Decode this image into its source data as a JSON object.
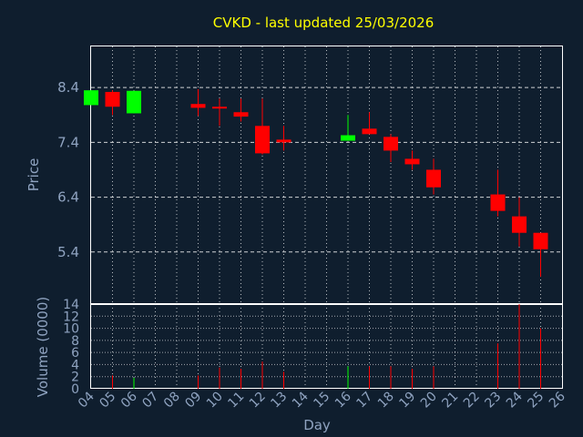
{
  "colors": {
    "background": "#0f1e2e",
    "frame": "#ffffff",
    "grid": "#ffffff",
    "text": "#8fa3c0",
    "title": "#ffff00",
    "up": "#00ff00",
    "down": "#ff0000"
  },
  "chart_data": {
    "type": "candlestick",
    "title": "CVKD - last updated 25/03/2026",
    "xlabel": "Day",
    "price_panel": {
      "ylabel": "Price",
      "yticks": [
        "8.4",
        "7.4",
        "6.4",
        "5.4"
      ],
      "ylim": [
        4.45,
        9.15
      ],
      "grid": true
    },
    "volume_panel": {
      "ylabel": "Volume (0000)",
      "yticks": [
        "0",
        "2",
        "4",
        "6",
        "8",
        "10",
        "12",
        "14"
      ],
      "ylim": [
        0,
        14
      ],
      "grid": true
    },
    "x_tick_labels": [
      "04",
      "05",
      "06",
      "07",
      "08",
      "09",
      "10",
      "11",
      "12",
      "13",
      "14",
      "15",
      "16",
      "17",
      "18",
      "19",
      "20",
      "21",
      "22",
      "23",
      "24",
      "25",
      "26"
    ],
    "candles": [
      {
        "day": "04",
        "open": 8.08,
        "high": 8.35,
        "low": 8.08,
        "close": 8.35,
        "volume": 0
      },
      {
        "day": "05",
        "open": 8.32,
        "high": 8.35,
        "low": 7.9,
        "close": 8.05,
        "volume": 2.2
      },
      {
        "day": "06",
        "open": 7.93,
        "high": 8.34,
        "low": 7.93,
        "close": 8.34,
        "volume": 1.8
      },
      {
        "day": "09",
        "open": 8.1,
        "high": 8.37,
        "low": 7.88,
        "close": 8.03,
        "volume": 2.2
      },
      {
        "day": "10",
        "open": 8.05,
        "high": 8.2,
        "low": 7.7,
        "close": 8.02,
        "volume": 3.5
      },
      {
        "day": "11",
        "open": 7.95,
        "high": 8.2,
        "low": 7.78,
        "close": 7.87,
        "volume": 3.3
      },
      {
        "day": "12",
        "open": 7.7,
        "high": 8.2,
        "low": 7.18,
        "close": 7.2,
        "volume": 4.5
      },
      {
        "day": "13",
        "open": 7.45,
        "high": 7.7,
        "low": 7.25,
        "close": 7.4,
        "volume": 2.8
      },
      {
        "day": "16",
        "open": 7.43,
        "high": 7.9,
        "low": 7.43,
        "close": 7.53,
        "volume": 3.7
      },
      {
        "day": "17",
        "open": 7.65,
        "high": 7.95,
        "low": 7.55,
        "close": 7.55,
        "volume": 3.7
      },
      {
        "day": "18",
        "open": 7.5,
        "high": 7.55,
        "low": 7.04,
        "close": 7.25,
        "volume": 3.7
      },
      {
        "day": "19",
        "open": 7.1,
        "high": 7.25,
        "low": 6.9,
        "close": 7.0,
        "volume": 3.3
      },
      {
        "day": "20",
        "open": 6.9,
        "high": 7.1,
        "low": 6.45,
        "close": 6.58,
        "volume": 3.7
      },
      {
        "day": "23",
        "open": 6.45,
        "high": 6.9,
        "low": 6.05,
        "close": 6.15,
        "volume": 7.5
      },
      {
        "day": "24",
        "open": 6.05,
        "high": 6.4,
        "low": 5.5,
        "close": 5.75,
        "volume": 14
      },
      {
        "day": "25",
        "open": 5.75,
        "high": 5.75,
        "low": 4.95,
        "close": 5.45,
        "volume": 10
      }
    ]
  }
}
